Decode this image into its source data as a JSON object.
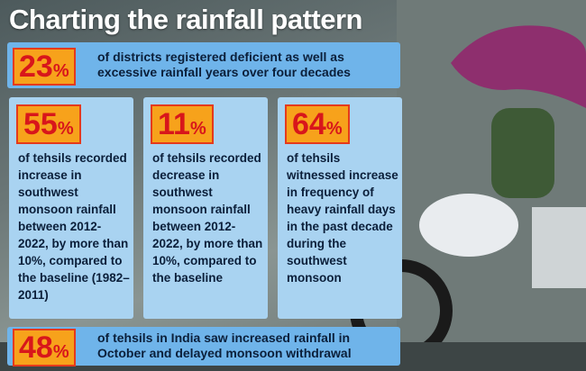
{
  "title": "Charting the rainfall pattern",
  "top": {
    "number": "23",
    "unit": "%",
    "text": "of districts registered deficient as well as excessive rainfall years over four decades"
  },
  "cards": [
    {
      "number": "55",
      "unit": "%",
      "text": "of tehsils recorded increase in southwest monsoon rainfall between 2012-2022, by more than 10%, compared to the baseline (1982–2011)"
    },
    {
      "number": "11",
      "unit": "%",
      "text": "of tehsils recorded decrease in southwest monsoon rainfall between 2012-2022, by more than 10%, compared to the baseline"
    },
    {
      "number": "64",
      "unit": "%",
      "text": "of tehsils witnessed increase in frequency of heavy rainfall days in the past decade during the southwest monsoon"
    }
  ],
  "bottom": {
    "number": "48",
    "unit": "%",
    "text": "of tehsils in India saw increased rainfall in October and delayed monsoon withdrawal"
  }
}
